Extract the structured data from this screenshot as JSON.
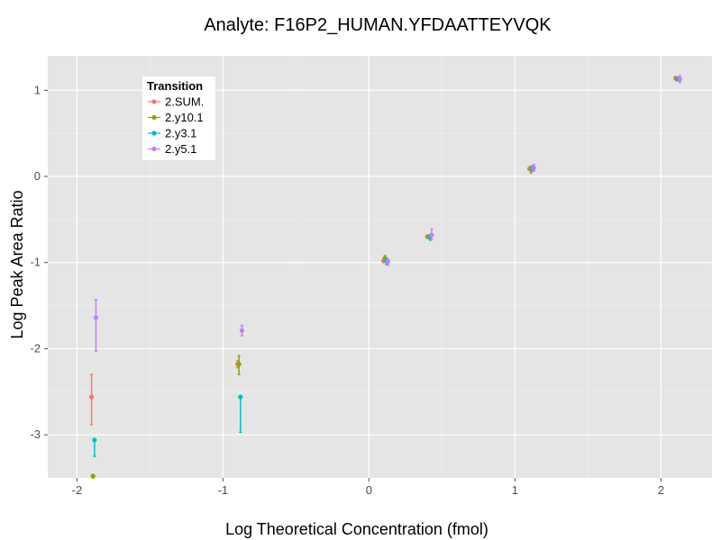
{
  "chart_data": {
    "type": "scatter",
    "title": "Analyte: F16P2_HUMAN.YFDAATTEYVQK",
    "xlabel": "Log Theoretical Concentration (fmol)",
    "ylabel": "Log Peak Area Ratio",
    "xlim": [
      -2.2,
      2.35
    ],
    "ylim": [
      -3.5,
      1.4
    ],
    "xticks": [
      -2,
      -1,
      0,
      1,
      2
    ],
    "xtick_labels": [
      "-2",
      "-1",
      "0",
      "1",
      "2"
    ],
    "yticks": [
      -3,
      -2,
      -1,
      0,
      1
    ],
    "ytick_labels": [
      "-3",
      "-2",
      "-1",
      "0",
      "1"
    ],
    "grid": true,
    "legend": {
      "title": "Transition",
      "position": "top-left"
    },
    "series": [
      {
        "name": "2.SUM.",
        "color": "#F8766D",
        "points": [
          {
            "x": -1.9,
            "y": -2.56,
            "ylo": -2.88,
            "yhi": -2.3
          },
          {
            "x": -0.9,
            "y": -2.18,
            "ylo": -2.22,
            "yhi": -2.14
          },
          {
            "x": 0.1,
            "y": -0.98,
            "ylo": -1.0,
            "yhi": -0.96
          },
          {
            "x": 0.4,
            "y": -0.7,
            "ylo": -0.72,
            "yhi": -0.68
          },
          {
            "x": 1.1,
            "y": 0.09,
            "ylo": 0.07,
            "yhi": 0.11
          },
          {
            "x": 2.1,
            "y": 1.14,
            "ylo": 1.12,
            "yhi": 1.16
          }
        ]
      },
      {
        "name": "2.y10.1",
        "color": "#7CAE00",
        "points": [
          {
            "x": -1.89,
            "y": -3.48,
            "ylo": -3.5,
            "yhi": -3.46
          },
          {
            "x": -0.89,
            "y": -2.18,
            "ylo": -2.3,
            "yhi": -2.08
          },
          {
            "x": 0.11,
            "y": -0.95,
            "ylo": -0.98,
            "yhi": -0.92
          },
          {
            "x": 0.41,
            "y": -0.7,
            "ylo": -0.72,
            "yhi": -0.68
          },
          {
            "x": 1.11,
            "y": 0.08,
            "ylo": 0.04,
            "yhi": 0.12
          },
          {
            "x": 2.11,
            "y": 1.13,
            "ylo": 1.11,
            "yhi": 1.15
          }
        ]
      },
      {
        "name": "2.y3.1",
        "color": "#00BFC4",
        "points": [
          {
            "x": -1.88,
            "y": -3.06,
            "ylo": -3.25,
            "yhi": -3.06
          },
          {
            "x": -0.88,
            "y": -2.56,
            "ylo": -2.97,
            "yhi": -2.56
          },
          {
            "x": 0.12,
            "y": -0.98,
            "ylo": -1.02,
            "yhi": -0.95
          },
          {
            "x": 0.42,
            "y": -0.7,
            "ylo": -0.74,
            "yhi": -0.68
          },
          {
            "x": 1.12,
            "y": 0.1,
            "ylo": 0.07,
            "yhi": 0.12
          },
          {
            "x": 2.12,
            "y": 1.13,
            "ylo": 1.11,
            "yhi": 1.15
          }
        ]
      },
      {
        "name": "2.y5.1",
        "color": "#C77CFF",
        "points": [
          {
            "x": -1.87,
            "y": -1.64,
            "ylo": -2.03,
            "yhi": -1.43
          },
          {
            "x": -0.87,
            "y": -1.79,
            "ylo": -1.85,
            "yhi": -1.73
          },
          {
            "x": 0.13,
            "y": -0.99,
            "ylo": -1.03,
            "yhi": -0.96
          },
          {
            "x": 0.43,
            "y": -0.68,
            "ylo": -0.73,
            "yhi": -0.61
          },
          {
            "x": 1.13,
            "y": 0.1,
            "ylo": 0.06,
            "yhi": 0.14
          },
          {
            "x": 2.13,
            "y": 1.13,
            "ylo": 1.09,
            "yhi": 1.17
          }
        ]
      }
    ]
  }
}
